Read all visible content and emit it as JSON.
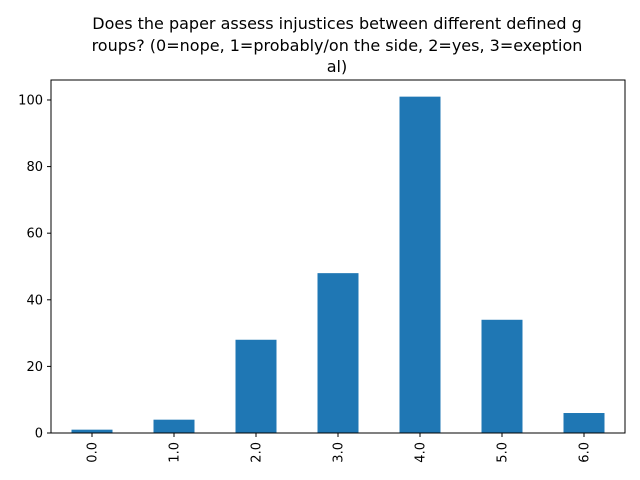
{
  "chart_data": {
    "type": "bar",
    "title_lines": [
      "Does the paper assess injustices between different defined g",
      "roups? (0=nope, 1=probably/on the side, 2=yes, 3=exeption",
      "al)"
    ],
    "categories": [
      "0.0",
      "1.0",
      "2.0",
      "3.0",
      "4.0",
      "5.0",
      "6.0"
    ],
    "values": [
      1,
      4,
      28,
      48,
      101,
      34,
      6
    ],
    "ylim": [
      0,
      106
    ],
    "yticks": [
      0,
      20,
      40,
      60,
      80,
      100
    ],
    "bar_color": "#1f77b4",
    "grid": false,
    "xlabel": "",
    "ylabel": ""
  }
}
